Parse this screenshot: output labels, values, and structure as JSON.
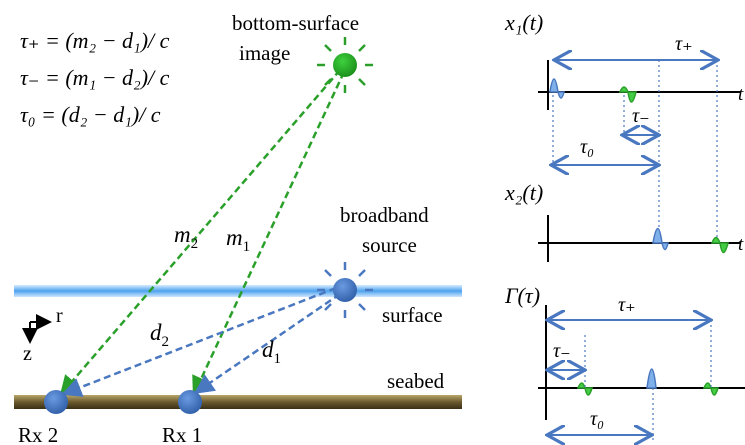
{
  "equations": {
    "tau_plus": "τ₊ = (m₂ − d₁)/ c",
    "tau_minus": "τ₋ = (m₁ − d₂)/ c",
    "tau_zero": "τ₀ = (d₂ − d₁)/ c"
  },
  "labels": {
    "image_line1": "bottom-surface",
    "image_line2": "image",
    "source_line1": "broadband",
    "source_line2": "source",
    "surface": "surface",
    "seabed": "seabed",
    "rx2": "Rx 2",
    "rx1": "Rx 1",
    "axis_r": "r",
    "axis_z": "z"
  },
  "paths": {
    "m2": "m",
    "m2_sub": "2",
    "m1": "m",
    "m1_sub": "1",
    "d2": "d",
    "d2_sub": "2",
    "d1": "d",
    "d1_sub": "1"
  },
  "plots": {
    "x1": "x₁(t)",
    "x2": "x₂(t)",
    "gamma": "Γ(τ)",
    "t_axis": "t",
    "tau_plus": "τ₊",
    "tau_minus": "τ₋",
    "tau_zero": "τ₀"
  },
  "colors": {
    "green": "#2aa02a",
    "blue": "#4a78c0",
    "surface": "#7fb8ea",
    "seabed": "#6b5a2e"
  }
}
